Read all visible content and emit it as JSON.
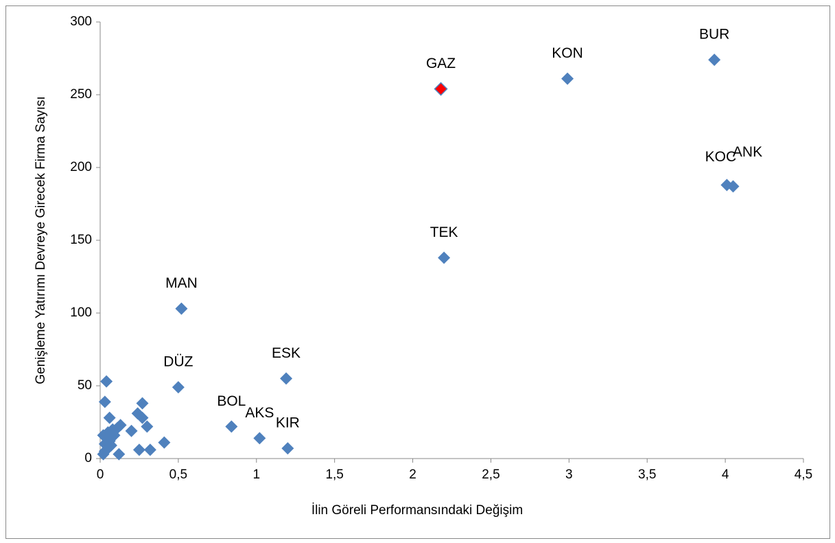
{
  "chart_data": {
    "type": "scatter",
    "xlabel": "İlin Göreli Performansındaki Değişim",
    "ylabel": "Genişleme Yatırımı Devreye Girecek Firma Sayısı",
    "x": [
      2.18,
      2.99,
      3.93,
      4.01,
      4.05,
      2.2,
      0.52,
      0.5,
      1.19,
      0.84,
      1.02,
      1.2,
      0.04,
      0.03,
      0.06,
      0.27,
      0.24,
      0.27,
      0.3,
      0.13,
      0.11,
      0.08,
      0.05,
      0.02,
      0.04,
      0.06,
      0.03,
      0.07,
      0.05,
      0.03,
      0.02,
      0.12,
      0.25,
      0.32,
      0.41,
      0.2,
      0.09
    ],
    "values": [
      254,
      261,
      274,
      188,
      187,
      138,
      103,
      49,
      55,
      22,
      14,
      7,
      53,
      39,
      28,
      38,
      31,
      28,
      22,
      23,
      21,
      20,
      18,
      16,
      14,
      12,
      10,
      9,
      7,
      5,
      3,
      3,
      6,
      6,
      11,
      19,
      16
    ],
    "point_labels": [
      "GAZ",
      "KON",
      "BUR",
      "KOC",
      "ANK",
      "TEK",
      "MAN",
      "DÜZ",
      "ESK",
      "BOL",
      "AKS",
      "KIR",
      null,
      null,
      null,
      null,
      null,
      null,
      null,
      null,
      null,
      null,
      null,
      null,
      null,
      null,
      null,
      null,
      null,
      null,
      null,
      null,
      null,
      null,
      null,
      null,
      null
    ],
    "colors": [
      "#ff0000",
      "#4f81bd",
      "#4f81bd",
      "#4f81bd",
      "#4f81bd",
      "#4f81bd",
      "#4f81bd",
      "#4f81bd",
      "#4f81bd",
      "#4f81bd",
      "#4f81bd",
      "#4f81bd",
      "#4f81bd",
      "#4f81bd",
      "#4f81bd",
      "#4f81bd",
      "#4f81bd",
      "#4f81bd",
      "#4f81bd",
      "#4f81bd",
      "#4f81bd",
      "#4f81bd",
      "#4f81bd",
      "#4f81bd",
      "#4f81bd",
      "#4f81bd",
      "#4f81bd",
      "#4f81bd",
      "#4f81bd",
      "#4f81bd",
      "#4f81bd",
      "#4f81bd",
      "#4f81bd",
      "#4f81bd",
      "#4f81bd",
      "#4f81bd",
      "#4f81bd"
    ],
    "xlim": [
      0,
      4.5
    ],
    "xticks": [
      0,
      {
        "value": 0.5,
        "label": "0,5"
      },
      1,
      {
        "value": 1.5,
        "label": "1,5"
      },
      2,
      {
        "value": 2.5,
        "label": "2,5"
      },
      3,
      {
        "value": 3.5,
        "label": "3,5"
      },
      4,
      {
        "value": 4.5,
        "label": "4,5"
      }
    ],
    "ylim": [
      0,
      300
    ],
    "yticks": [
      0,
      50,
      100,
      150,
      200,
      250,
      300
    ],
    "grid": false
  }
}
